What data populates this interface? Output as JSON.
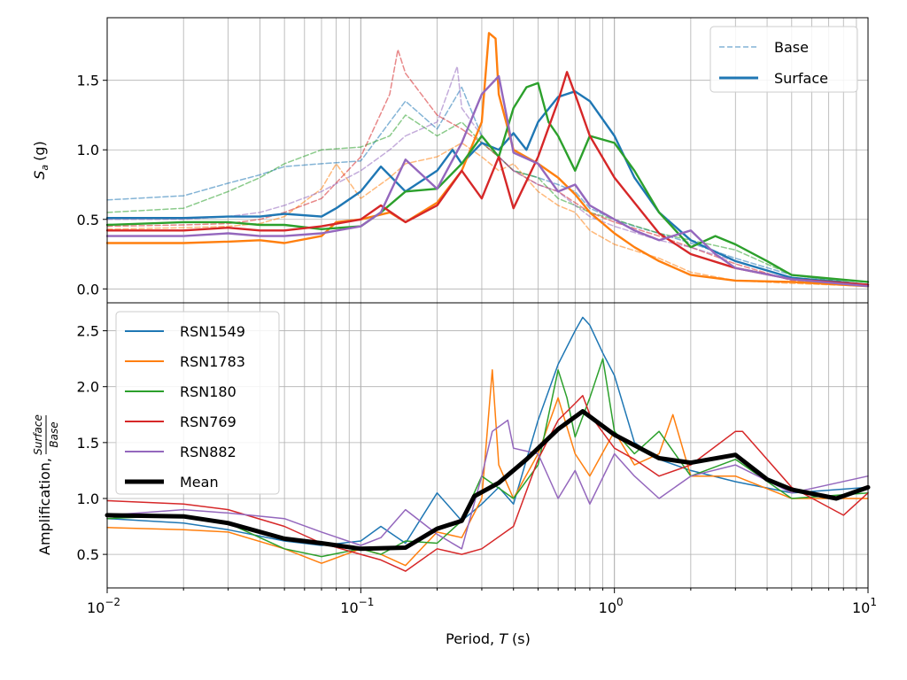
{
  "colors": {
    "RSN1549": "#1f77b4",
    "RSN1783": "#ff7f0e",
    "RSN180": "#2ca02c",
    "RSN769": "#d62728",
    "RSN882": "#9467bd",
    "Mean": "#000000"
  },
  "chart_data": [
    {
      "type": "line",
      "panel": "top",
      "ylabel": "S_a (g)",
      "ylabel_main": "S",
      "ylabel_sub": "a",
      "ylabel_unit": "(g)",
      "x_scale": "log",
      "xlim": [
        0.01,
        10
      ],
      "ylim": [
        -0.1,
        1.95
      ],
      "y_ticks": [
        0.0,
        0.5,
        1.0,
        1.5
      ],
      "y_tick_labels": [
        "0.0",
        "0.5",
        "1.0",
        "1.5"
      ],
      "grid": "both (major and minor)",
      "legend": {
        "placement": "top-right",
        "entries": [
          {
            "label": "Base",
            "style": "dashed",
            "color": "#1f77b4"
          },
          {
            "label": "Surface",
            "style": "solid",
            "color": "#1f77b4"
          }
        ]
      },
      "series": [
        {
          "name": "RSN1549",
          "kind": "Base",
          "x": [
            0.01,
            0.02,
            0.03,
            0.04,
            0.05,
            0.07,
            0.1,
            0.13,
            0.15,
            0.2,
            0.25,
            0.3,
            0.35,
            0.4,
            0.5,
            0.6,
            0.7,
            0.8,
            1,
            1.2,
            1.5,
            2,
            3,
            5,
            10
          ],
          "y": [
            0.64,
            0.67,
            0.76,
            0.82,
            0.88,
            0.9,
            0.92,
            1.2,
            1.35,
            1.15,
            1.45,
            1.1,
            0.95,
            0.85,
            0.8,
            0.75,
            0.7,
            0.58,
            0.5,
            0.45,
            0.4,
            0.33,
            0.22,
            0.1,
            0.03
          ]
        },
        {
          "name": "RSN1783",
          "kind": "Base",
          "x": [
            0.01,
            0.02,
            0.03,
            0.04,
            0.05,
            0.07,
            0.08,
            0.1,
            0.13,
            0.15,
            0.2,
            0.25,
            0.3,
            0.35,
            0.4,
            0.5,
            0.6,
            0.7,
            0.8,
            1,
            1.5,
            2,
            3,
            5,
            10
          ],
          "y": [
            0.43,
            0.44,
            0.45,
            0.47,
            0.52,
            0.72,
            0.9,
            0.65,
            0.8,
            0.9,
            0.95,
            1.05,
            0.95,
            0.85,
            0.9,
            0.7,
            0.6,
            0.55,
            0.42,
            0.32,
            0.22,
            0.12,
            0.06,
            0.04,
            0.02
          ]
        },
        {
          "name": "RSN180",
          "kind": "Base",
          "x": [
            0.01,
            0.02,
            0.03,
            0.04,
            0.05,
            0.07,
            0.1,
            0.13,
            0.15,
            0.2,
            0.25,
            0.3,
            0.35,
            0.4,
            0.5,
            0.6,
            0.7,
            0.8,
            1,
            1.5,
            2,
            3,
            5,
            10
          ],
          "y": [
            0.55,
            0.58,
            0.7,
            0.8,
            0.9,
            1.0,
            1.02,
            1.1,
            1.25,
            1.1,
            1.2,
            1.05,
            0.95,
            0.85,
            0.8,
            0.65,
            0.6,
            0.55,
            0.5,
            0.4,
            0.35,
            0.28,
            0.1,
            0.03
          ]
        },
        {
          "name": "RSN769",
          "kind": "Base",
          "x": [
            0.01,
            0.02,
            0.03,
            0.04,
            0.05,
            0.07,
            0.1,
            0.13,
            0.14,
            0.15,
            0.2,
            0.25,
            0.3,
            0.35,
            0.4,
            0.5,
            0.6,
            0.7,
            0.8,
            1,
            1.5,
            2,
            3,
            5,
            10
          ],
          "y": [
            0.45,
            0.46,
            0.47,
            0.5,
            0.55,
            0.65,
            0.95,
            1.4,
            1.72,
            1.55,
            1.25,
            1.15,
            1.05,
            0.95,
            0.85,
            0.75,
            0.7,
            0.62,
            0.55,
            0.48,
            0.38,
            0.3,
            0.18,
            0.06,
            0.02
          ]
        },
        {
          "name": "RSN882",
          "kind": "Base",
          "x": [
            0.01,
            0.02,
            0.03,
            0.04,
            0.05,
            0.07,
            0.1,
            0.13,
            0.15,
            0.2,
            0.24,
            0.25,
            0.3,
            0.35,
            0.4,
            0.5,
            0.6,
            0.7,
            0.8,
            1,
            1.5,
            2,
            3,
            5,
            10
          ],
          "y": [
            0.5,
            0.5,
            0.52,
            0.55,
            0.6,
            0.7,
            0.85,
            1.0,
            1.1,
            1.2,
            1.6,
            1.3,
            1.1,
            0.95,
            0.85,
            0.75,
            0.7,
            0.6,
            0.52,
            0.45,
            0.35,
            0.3,
            0.2,
            0.08,
            0.03
          ]
        },
        {
          "name": "RSN1549",
          "kind": "Surface",
          "x": [
            0.01,
            0.02,
            0.03,
            0.04,
            0.05,
            0.07,
            0.08,
            0.1,
            0.12,
            0.15,
            0.2,
            0.23,
            0.25,
            0.3,
            0.35,
            0.4,
            0.45,
            0.5,
            0.6,
            0.7,
            0.8,
            1,
            1.2,
            1.5,
            2,
            3,
            5,
            10
          ],
          "y": [
            0.51,
            0.51,
            0.52,
            0.52,
            0.54,
            0.52,
            0.58,
            0.7,
            0.88,
            0.7,
            0.85,
            1.0,
            0.9,
            1.05,
            1.0,
            1.12,
            1.0,
            1.2,
            1.38,
            1.42,
            1.35,
            1.1,
            0.8,
            0.55,
            0.35,
            0.2,
            0.08,
            0.03
          ]
        },
        {
          "name": "RSN1783",
          "kind": "Surface",
          "x": [
            0.01,
            0.02,
            0.03,
            0.04,
            0.05,
            0.07,
            0.08,
            0.1,
            0.13,
            0.15,
            0.2,
            0.25,
            0.3,
            0.32,
            0.34,
            0.35,
            0.4,
            0.5,
            0.6,
            0.7,
            0.8,
            1,
            1.2,
            1.5,
            2,
            3,
            5,
            10
          ],
          "y": [
            0.33,
            0.33,
            0.34,
            0.35,
            0.33,
            0.38,
            0.48,
            0.5,
            0.55,
            0.48,
            0.62,
            0.85,
            1.2,
            1.84,
            1.8,
            1.4,
            1.0,
            0.9,
            0.8,
            0.68,
            0.55,
            0.4,
            0.3,
            0.2,
            0.1,
            0.06,
            0.05,
            0.02
          ]
        },
        {
          "name": "RSN180",
          "kind": "Surface",
          "x": [
            0.01,
            0.02,
            0.03,
            0.04,
            0.05,
            0.07,
            0.1,
            0.12,
            0.15,
            0.2,
            0.25,
            0.3,
            0.35,
            0.4,
            0.45,
            0.5,
            0.55,
            0.6,
            0.7,
            0.8,
            1,
            1.2,
            1.5,
            2,
            2.5,
            3,
            4,
            5,
            10
          ],
          "y": [
            0.46,
            0.48,
            0.48,
            0.46,
            0.46,
            0.43,
            0.45,
            0.55,
            0.7,
            0.72,
            0.9,
            1.1,
            0.95,
            1.3,
            1.45,
            1.48,
            1.2,
            1.1,
            0.85,
            1.1,
            1.05,
            0.85,
            0.55,
            0.3,
            0.38,
            0.32,
            0.2,
            0.1,
            0.05
          ]
        },
        {
          "name": "RSN769",
          "kind": "Surface",
          "x": [
            0.01,
            0.02,
            0.03,
            0.04,
            0.05,
            0.07,
            0.1,
            0.12,
            0.15,
            0.2,
            0.25,
            0.3,
            0.35,
            0.4,
            0.5,
            0.6,
            0.65,
            0.7,
            0.8,
            1,
            1.2,
            1.5,
            2,
            3,
            5,
            10
          ],
          "y": [
            0.42,
            0.42,
            0.44,
            0.42,
            0.42,
            0.45,
            0.5,
            0.6,
            0.48,
            0.6,
            0.85,
            0.65,
            0.95,
            0.58,
            0.95,
            1.35,
            1.56,
            1.4,
            1.1,
            0.8,
            0.62,
            0.4,
            0.25,
            0.15,
            0.07,
            0.03
          ]
        },
        {
          "name": "RSN882",
          "kind": "Surface",
          "x": [
            0.01,
            0.02,
            0.03,
            0.04,
            0.05,
            0.07,
            0.1,
            0.12,
            0.15,
            0.2,
            0.25,
            0.3,
            0.35,
            0.38,
            0.4,
            0.5,
            0.6,
            0.7,
            0.8,
            1,
            1.2,
            1.5,
            2,
            2.5,
            3,
            5,
            10
          ],
          "y": [
            0.38,
            0.38,
            0.4,
            0.38,
            0.38,
            0.4,
            0.45,
            0.55,
            0.93,
            0.72,
            1.05,
            1.4,
            1.53,
            1.2,
            0.98,
            0.9,
            0.7,
            0.75,
            0.6,
            0.5,
            0.42,
            0.35,
            0.42,
            0.25,
            0.15,
            0.07,
            0.02
          ]
        }
      ]
    },
    {
      "type": "line",
      "panel": "bottom",
      "xlabel": "Period, T (s)",
      "xlabel_prefix": "Period, ",
      "xlabel_var": "T",
      "xlabel_unit": " (s)",
      "ylabel_prefix": "Amplification, ",
      "ylabel_num": "Surface",
      "ylabel_den": "Base",
      "x_scale": "log",
      "xlim": [
        0.01,
        10
      ],
      "ylim": [
        0.2,
        2.75
      ],
      "y_ticks": [
        0.5,
        1.0,
        1.5,
        2.0,
        2.5
      ],
      "y_tick_labels": [
        "0.5",
        "1.0",
        "1.5",
        "2.0",
        "2.5"
      ],
      "x_tick_bases": [
        "10",
        "10",
        "10",
        "10"
      ],
      "x_tick_exps": [
        "−2",
        "−1",
        "0",
        "1"
      ],
      "grid": "both (major and minor)",
      "legend": {
        "placement": "top-left",
        "entries": [
          "RSN1549",
          "RSN1783",
          "RSN180",
          "RSN769",
          "RSN882",
          "Mean"
        ]
      },
      "series": [
        {
          "name": "RSN1549",
          "x": [
            0.01,
            0.02,
            0.03,
            0.05,
            0.07,
            0.1,
            0.12,
            0.15,
            0.2,
            0.25,
            0.3,
            0.35,
            0.4,
            0.5,
            0.6,
            0.7,
            0.75,
            0.8,
            0.9,
            1,
            1.2,
            1.5,
            2,
            3,
            5,
            10
          ],
          "y": [
            0.82,
            0.78,
            0.72,
            0.62,
            0.58,
            0.62,
            0.75,
            0.6,
            1.05,
            0.8,
            0.95,
            1.1,
            0.95,
            1.7,
            2.2,
            2.5,
            2.62,
            2.55,
            2.3,
            2.1,
            1.5,
            1.35,
            1.25,
            1.15,
            1.05,
            1.1
          ]
        },
        {
          "name": "RSN1783",
          "x": [
            0.01,
            0.02,
            0.03,
            0.05,
            0.07,
            0.1,
            0.12,
            0.15,
            0.2,
            0.25,
            0.3,
            0.33,
            0.35,
            0.4,
            0.5,
            0.6,
            0.7,
            0.8,
            1,
            1.2,
            1.5,
            1.7,
            2,
            3,
            5,
            10
          ],
          "y": [
            0.74,
            0.72,
            0.7,
            0.55,
            0.42,
            0.55,
            0.5,
            0.4,
            0.7,
            0.65,
            1.0,
            2.15,
            1.3,
            1.0,
            1.4,
            1.9,
            1.4,
            1.2,
            1.6,
            1.3,
            1.4,
            1.75,
            1.2,
            1.2,
            1.0,
            1.0
          ]
        },
        {
          "name": "RSN180",
          "x": [
            0.01,
            0.02,
            0.03,
            0.05,
            0.07,
            0.1,
            0.12,
            0.15,
            0.2,
            0.25,
            0.3,
            0.4,
            0.5,
            0.6,
            0.65,
            0.7,
            0.8,
            0.9,
            1,
            1.2,
            1.5,
            2,
            3,
            5,
            10
          ],
          "y": [
            0.82,
            0.85,
            0.78,
            0.55,
            0.48,
            0.55,
            0.5,
            0.62,
            0.6,
            0.8,
            1.2,
            1.0,
            1.3,
            2.15,
            1.9,
            1.55,
            1.9,
            2.25,
            1.6,
            1.4,
            1.6,
            1.2,
            1.35,
            1.0,
            1.05
          ]
        },
        {
          "name": "RSN769",
          "x": [
            0.01,
            0.02,
            0.03,
            0.05,
            0.07,
            0.1,
            0.12,
            0.15,
            0.2,
            0.25,
            0.3,
            0.4,
            0.5,
            0.6,
            0.7,
            0.75,
            0.8,
            1,
            1.2,
            1.5,
            2,
            3,
            3.2,
            5,
            8,
            10
          ],
          "y": [
            0.98,
            0.95,
            0.9,
            0.75,
            0.6,
            0.5,
            0.45,
            0.35,
            0.55,
            0.5,
            0.55,
            0.75,
            1.35,
            1.7,
            1.85,
            1.92,
            1.75,
            1.45,
            1.35,
            1.2,
            1.3,
            1.6,
            1.6,
            1.1,
            0.85,
            1.05
          ]
        },
        {
          "name": "RSN882",
          "x": [
            0.01,
            0.02,
            0.03,
            0.05,
            0.07,
            0.1,
            0.12,
            0.15,
            0.2,
            0.25,
            0.3,
            0.33,
            0.38,
            0.4,
            0.5,
            0.6,
            0.7,
            0.8,
            1,
            1.2,
            1.5,
            2,
            3,
            5,
            10
          ],
          "y": [
            0.85,
            0.9,
            0.87,
            0.82,
            0.7,
            0.58,
            0.65,
            0.9,
            0.68,
            0.55,
            1.2,
            1.6,
            1.7,
            1.45,
            1.4,
            1.0,
            1.25,
            0.95,
            1.4,
            1.2,
            1.0,
            1.2,
            1.3,
            1.05,
            1.2
          ]
        },
        {
          "name": "Mean",
          "x": [
            0.01,
            0.02,
            0.03,
            0.05,
            0.07,
            0.1,
            0.15,
            0.2,
            0.25,
            0.28,
            0.35,
            0.45,
            0.6,
            0.75,
            1,
            1.5,
            2,
            3,
            4,
            5,
            7.5,
            10
          ],
          "y": [
            0.85,
            0.84,
            0.78,
            0.64,
            0.6,
            0.55,
            0.56,
            0.73,
            0.8,
            1.02,
            1.14,
            1.35,
            1.62,
            1.78,
            1.57,
            1.36,
            1.32,
            1.39,
            1.17,
            1.08,
            1.0,
            1.1
          ]
        }
      ]
    }
  ]
}
